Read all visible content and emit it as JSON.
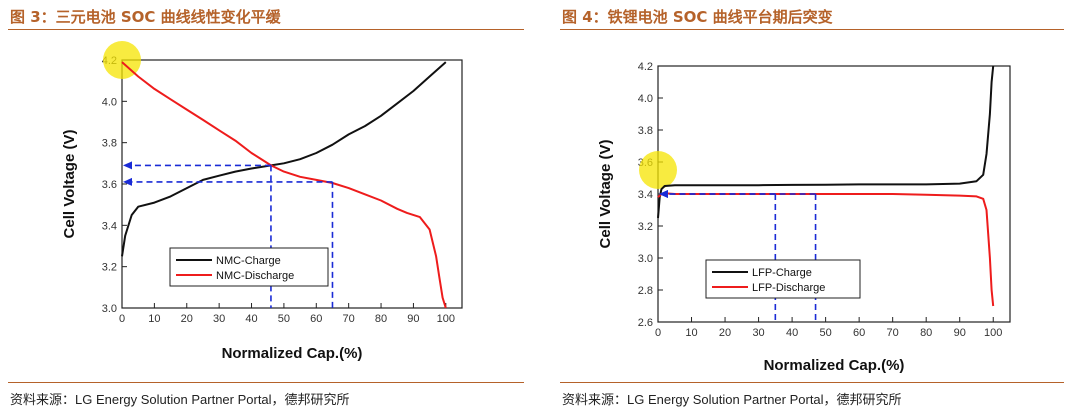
{
  "source_text": "资料来源：LG Energy Solution Partner Portal，德邦研究所",
  "colors": {
    "charge": "#111111",
    "discharge": "#ee1c1c",
    "guide": "#1a2bd6",
    "highlight": "#f5e400",
    "title": "#b5622a"
  },
  "chart_data": [
    {
      "type": "line",
      "title": "图 3：三元电池 SOC 曲线线性变化平缓",
      "xlabel": "Normalized Cap.(%)",
      "ylabel": "Cell Voltage (V)",
      "xlim": [
        0,
        105
      ],
      "ylim": [
        3.0,
        4.2
      ],
      "xticks": [
        0,
        10,
        20,
        30,
        40,
        50,
        60,
        70,
        80,
        90,
        100
      ],
      "yticks": [
        3.0,
        3.2,
        3.4,
        3.6,
        3.8,
        4.0,
        4.2
      ],
      "ytick_labels": [
        "3.0",
        "3.2",
        "3.4",
        "3.6",
        "3.8",
        "4.0",
        "4.2"
      ],
      "series": [
        {
          "name": "NMC-Charge",
          "color": "#111111",
          "x": [
            0,
            1,
            3,
            5,
            10,
            15,
            20,
            25,
            30,
            35,
            40,
            46,
            50,
            55,
            60,
            65,
            70,
            75,
            80,
            85,
            90,
            95,
            100
          ],
          "y": [
            3.25,
            3.35,
            3.45,
            3.49,
            3.51,
            3.54,
            3.58,
            3.62,
            3.64,
            3.66,
            3.675,
            3.69,
            3.7,
            3.72,
            3.75,
            3.79,
            3.84,
            3.88,
            3.93,
            3.99,
            4.05,
            4.12,
            4.19
          ]
        },
        {
          "name": "NMC-Discharge",
          "color": "#ee1c1c",
          "x": [
            0,
            5,
            10,
            15,
            20,
            25,
            30,
            35,
            40,
            46,
            50,
            55,
            60,
            65,
            70,
            75,
            80,
            85,
            88,
            92,
            95,
            97,
            98,
            99,
            100
          ],
          "y": [
            4.19,
            4.12,
            4.06,
            4.01,
            3.96,
            3.91,
            3.86,
            3.81,
            3.75,
            3.69,
            3.66,
            3.635,
            3.62,
            3.605,
            3.58,
            3.55,
            3.52,
            3.48,
            3.46,
            3.44,
            3.38,
            3.25,
            3.15,
            3.05,
            3.0
          ]
        }
      ],
      "annotations": {
        "highlight_point": {
          "x": 0,
          "y": 4.2
        },
        "guides": [
          {
            "x": 46,
            "y": 3.69
          },
          {
            "x": 65,
            "y": 3.61
          }
        ]
      },
      "legend": {
        "position": "lower-center"
      }
    },
    {
      "type": "line",
      "title": "图 4：铁锂电池 SOC 曲线平台期后突变",
      "xlabel": "Normalized Cap.(%)",
      "ylabel": "Cell Voltage (V)",
      "xlim": [
        0,
        105
      ],
      "ylim": [
        2.6,
        4.2
      ],
      "xticks": [
        0,
        10,
        20,
        30,
        40,
        50,
        60,
        70,
        80,
        90,
        100
      ],
      "yticks": [
        2.6,
        2.8,
        3.0,
        3.2,
        3.4,
        3.6,
        3.8,
        4.0,
        4.2
      ],
      "ytick_labels": [
        "2.6",
        "2.8",
        "3.0",
        "3.2",
        "3.4",
        "3.6",
        "3.8",
        "4.0",
        "4.2"
      ],
      "series": [
        {
          "name": "LFP-Charge",
          "color": "#111111",
          "x": [
            0,
            0.5,
            1,
            2,
            5,
            10,
            20,
            30,
            40,
            50,
            60,
            70,
            80,
            90,
            95,
            97,
            98,
            99,
            99.5,
            100
          ],
          "y": [
            3.25,
            3.38,
            3.43,
            3.45,
            3.455,
            3.455,
            3.455,
            3.455,
            3.457,
            3.458,
            3.46,
            3.46,
            3.46,
            3.465,
            3.48,
            3.52,
            3.65,
            3.9,
            4.1,
            4.2
          ]
        },
        {
          "name": "LFP-Discharge",
          "color": "#ee1c1c",
          "x": [
            0,
            1,
            2,
            5,
            10,
            20,
            30,
            40,
            50,
            60,
            70,
            80,
            90,
            95,
            97,
            98,
            98.5,
            99,
            99.5,
            100
          ],
          "y": [
            3.38,
            3.4,
            3.405,
            3.4,
            3.4,
            3.4,
            3.4,
            3.4,
            3.4,
            3.4,
            3.4,
            3.395,
            3.39,
            3.385,
            3.37,
            3.3,
            3.15,
            3.0,
            2.8,
            2.7
          ]
        }
      ],
      "annotations": {
        "highlight_point": {
          "x": 0,
          "y": 3.55
        },
        "guides": [
          {
            "x": 35,
            "y": 3.4
          },
          {
            "x": 47,
            "y": 3.4
          }
        ]
      },
      "legend": {
        "position": "lower-left"
      }
    }
  ]
}
